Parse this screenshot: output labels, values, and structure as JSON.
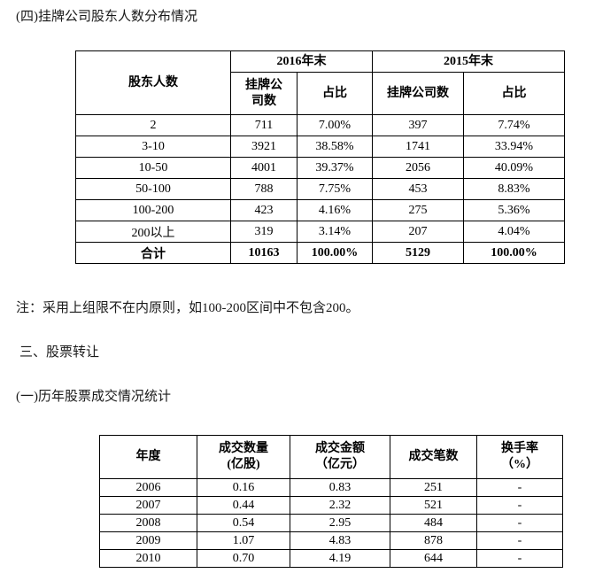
{
  "page": {
    "title": "(四)挂牌公司股东人数分布情况",
    "note": "注：采用上组限不在内原则，如100-200区间中不包含200。",
    "section_heading": "三、股票转让",
    "subsection_heading": "(一)历年股票成交情况统计"
  },
  "shareholder_table": {
    "corner_label": "股东人数",
    "year_2016": "2016年末",
    "year_2015": "2015年末",
    "sub_headers": [
      "挂牌公\n司数",
      "占比",
      "挂牌公司数",
      "占比"
    ],
    "rows": [
      {
        "cells": [
          "2",
          "711",
          "7.00%",
          "397",
          "7.74%"
        ]
      },
      {
        "cells": [
          "3-10",
          "3921",
          "38.58%",
          "1741",
          "33.94%"
        ]
      },
      {
        "cells": [
          "10-50",
          "4001",
          "39.37%",
          "2056",
          "40.09%"
        ]
      },
      {
        "cells": [
          "50-100",
          "788",
          "7.75%",
          "453",
          "8.83%"
        ]
      },
      {
        "cells": [
          "100-200",
          "423",
          "4.16%",
          "275",
          "5.36%"
        ]
      },
      {
        "cells": [
          "200以上",
          "319",
          "3.14%",
          "207",
          "4.04%"
        ]
      },
      {
        "cells": [
          "合计",
          "10163",
          "100.00%",
          "5129",
          "100.00%"
        ],
        "bold": true
      }
    ]
  },
  "trading_table": {
    "headers": [
      "年度",
      "成交数量\n(亿股)",
      "成交金额\n（亿元）",
      "成交笔数",
      "换手率\n（%）"
    ],
    "rows": [
      {
        "cells": [
          "2006",
          "0.16",
          "0.83",
          "251",
          "-"
        ]
      },
      {
        "cells": [
          "2007",
          "0.44",
          "2.32",
          "521",
          "-"
        ]
      },
      {
        "cells": [
          "2008",
          "0.54",
          "2.95",
          "484",
          "-"
        ]
      },
      {
        "cells": [
          "2009",
          "1.07",
          "4.83",
          "878",
          "-"
        ]
      },
      {
        "cells": [
          "2010",
          "0.70",
          "4.19",
          "644",
          "-"
        ]
      }
    ]
  }
}
